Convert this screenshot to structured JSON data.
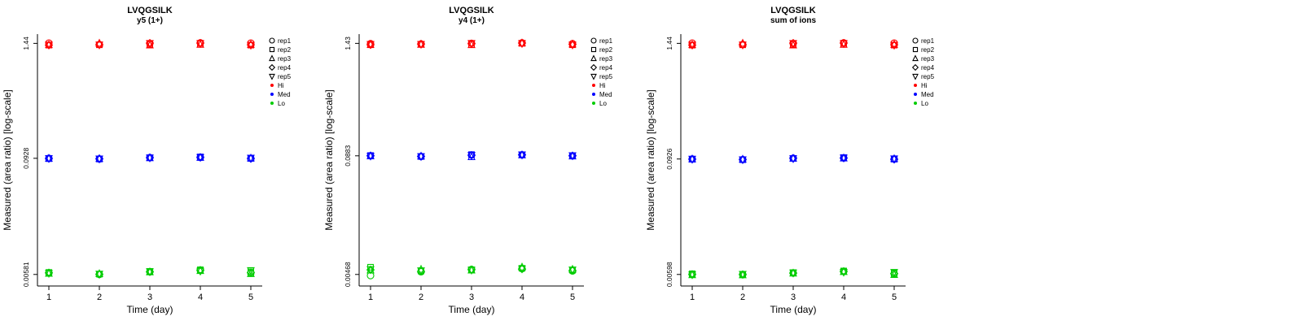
{
  "figure": {
    "background": "#ffffff",
    "marker_shapes": [
      "circle",
      "square",
      "triangle-up",
      "diamond",
      "triangle-down"
    ],
    "colors": {
      "hi": "#ff0000",
      "med": "#0000ff",
      "lo": "#00cc00",
      "axis": "#000000"
    }
  },
  "chart_data": [
    {
      "type": "scatter",
      "title": "LVQGSILK",
      "subtitle": "y5 (1+)",
      "xlabel": "Time (day)",
      "ylabel": "Measured (area ratio) [log-scale]",
      "x": [
        1,
        2,
        3,
        4,
        5
      ],
      "yscale": "log",
      "yticks": [
        0.00581,
        0.0928,
        1.44
      ],
      "ytick_labels": [
        "0.00581",
        "0.0928",
        "1.44"
      ],
      "legend": {
        "reps": [
          "rep1",
          "rep2",
          "rep3",
          "rep4",
          "rep5"
        ],
        "levels": [
          "Hi",
          "Med",
          "Lo"
        ],
        "position": "right"
      },
      "levels": [
        {
          "name": "Hi",
          "color": "#ff0000",
          "reps": [
            [
              1.45,
              1.4,
              1.44,
              1.46,
              1.45
            ],
            [
              1.38,
              1.39,
              1.4,
              1.44,
              1.38
            ],
            [
              1.39,
              1.44,
              1.38,
              1.4,
              1.4
            ],
            [
              1.38,
              1.4,
              1.45,
              1.45,
              1.39
            ],
            [
              1.39,
              1.39,
              1.44,
              1.44,
              1.38
            ]
          ]
        },
        {
          "name": "Med",
          "color": "#0000ff",
          "reps": [
            [
              0.0928,
              0.0915,
              0.0945,
              0.095,
              0.0928
            ],
            [
              0.092,
              0.0912,
              0.094,
              0.096,
              0.0925
            ],
            [
              0.0925,
              0.092,
              0.0938,
              0.0945,
              0.093
            ],
            [
              0.0923,
              0.0918,
              0.0942,
              0.0948,
              0.092
            ],
            [
              0.0926,
              0.0916,
              0.094,
              0.0952,
              0.0935
            ]
          ]
        },
        {
          "name": "Lo",
          "color": "#00cc00",
          "reps": [
            [
              0.006,
              0.00581,
              0.0062,
              0.0064,
              0.006
            ],
            [
              0.0061,
              0.00585,
              0.00625,
              0.0065,
              0.0062
            ],
            [
              0.00595,
              0.0059,
              0.00615,
              0.00635,
              0.0059
            ],
            [
              0.00605,
              0.00583,
              0.00618,
              0.00645,
              0.0061
            ],
            [
              0.00598,
              0.00587,
              0.00622,
              0.0063,
              0.0064
            ]
          ]
        }
      ]
    },
    {
      "type": "scatter",
      "title": "LVQGSILK",
      "subtitle": "y4 (1+)",
      "xlabel": "Time (day)",
      "ylabel": "Measured (area ratio) [log-scale]",
      "x": [
        1,
        2,
        3,
        4,
        5
      ],
      "yscale": "log",
      "yticks": [
        0.00468,
        0.0883,
        1.43
      ],
      "ytick_labels": [
        "0.00468",
        "0.0883",
        "1.43"
      ],
      "legend": {
        "reps": [
          "rep1",
          "rep2",
          "rep3",
          "rep4",
          "rep5"
        ],
        "levels": [
          "Hi",
          "Med",
          "Lo"
        ],
        "position": "right"
      },
      "levels": [
        {
          "name": "Hi",
          "color": "#ff0000",
          "reps": [
            [
              1.42,
              1.41,
              1.43,
              1.45,
              1.42
            ],
            [
              1.38,
              1.4,
              1.43,
              1.43,
              1.38
            ],
            [
              1.39,
              1.39,
              1.38,
              1.44,
              1.4
            ],
            [
              1.38,
              1.41,
              1.42,
              1.44,
              1.39
            ],
            [
              1.4,
              1.4,
              1.43,
              1.43,
              1.38
            ]
          ]
        },
        {
          "name": "Med",
          "color": "#0000ff",
          "reps": [
            [
              0.0883,
              0.087,
              0.09,
              0.0905,
              0.0883
            ],
            [
              0.089,
              0.0868,
              0.091,
              0.0908,
              0.088
            ],
            [
              0.0878,
              0.0874,
              0.086,
              0.09,
              0.0875
            ],
            [
              0.0885,
              0.0872,
              0.0895,
              0.0903,
              0.0885
            ],
            [
              0.088,
              0.087,
              0.0898,
              0.0906,
              0.089
            ]
          ]
        },
        {
          "name": "Lo",
          "color": "#00cc00",
          "reps": [
            [
              0.00455,
              0.005,
              0.0053,
              0.0054,
              0.0051
            ],
            [
              0.0056,
              0.0051,
              0.00525,
              0.00545,
              0.0052
            ],
            [
              0.0052,
              0.0053,
              0.0052,
              0.0056,
              0.0053
            ],
            [
              0.00525,
              0.00505,
              0.00528,
              0.00535,
              0.00515
            ],
            [
              0.0053,
              0.00515,
              0.00522,
              0.0054,
              0.00525
            ]
          ]
        }
      ]
    },
    {
      "type": "scatter",
      "title": "LVQGSILK",
      "subtitle": "sum of ions",
      "xlabel": "Time (day)",
      "ylabel": "Measured (area ratio) [log-scale]",
      "x": [
        1,
        2,
        3,
        4,
        5
      ],
      "yscale": "log",
      "yticks": [
        0.00598,
        0.0926,
        1.44
      ],
      "ytick_labels": [
        "0.00598",
        "0.0926",
        "1.44"
      ],
      "legend": {
        "reps": [
          "rep1",
          "rep2",
          "rep3",
          "rep4",
          "rep5"
        ],
        "levels": [
          "Hi",
          "Med",
          "Lo"
        ],
        "position": "right"
      },
      "levels": [
        {
          "name": "Hi",
          "color": "#ff0000",
          "reps": [
            [
              1.45,
              1.4,
              1.44,
              1.46,
              1.45
            ],
            [
              1.38,
              1.39,
              1.4,
              1.44,
              1.38
            ],
            [
              1.39,
              1.44,
              1.38,
              1.4,
              1.4
            ],
            [
              1.38,
              1.4,
              1.45,
              1.45,
              1.39
            ],
            [
              1.39,
              1.39,
              1.44,
              1.44,
              1.38
            ]
          ]
        },
        {
          "name": "Med",
          "color": "#0000ff",
          "reps": [
            [
              0.0926,
              0.0914,
              0.0944,
              0.095,
              0.0926
            ],
            [
              0.092,
              0.091,
              0.0938,
              0.0958,
              0.0922
            ],
            [
              0.0924,
              0.0918,
              0.094,
              0.0944,
              0.093
            ],
            [
              0.0921,
              0.0916,
              0.0942,
              0.0948,
              0.0918
            ],
            [
              0.0925,
              0.0912,
              0.0936,
              0.0952,
              0.0932
            ]
          ]
        },
        {
          "name": "Lo",
          "color": "#00cc00",
          "reps": [
            [
              0.00598,
              0.00595,
              0.0062,
              0.00645,
              0.00605
            ],
            [
              0.00608,
              0.006,
              0.00625,
              0.0065,
              0.0062
            ],
            [
              0.00592,
              0.0059,
              0.00615,
              0.00638,
              0.00595
            ],
            [
              0.006,
              0.00598,
              0.00618,
              0.00642,
              0.00612
            ],
            [
              0.00595,
              0.00602,
              0.00622,
              0.00632,
              0.0063
            ]
          ]
        }
      ]
    }
  ]
}
